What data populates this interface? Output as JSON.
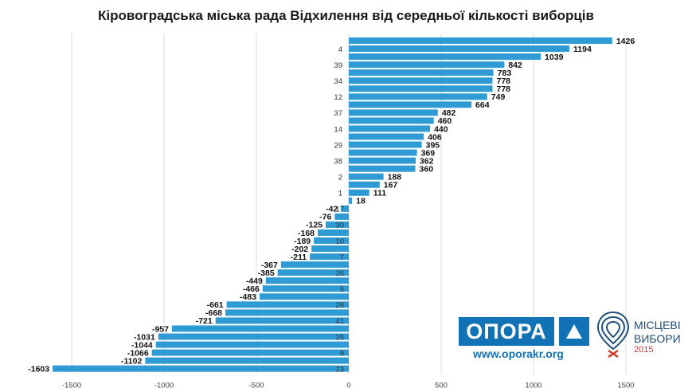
{
  "chart_data": {
    "type": "bar",
    "orientation": "horizontal",
    "title": "Кіровоградська  міська рада Відхилення від середньої кількості виборців",
    "xlim": [
      -1700,
      1500
    ],
    "x_ticks": [
      -1500,
      -1000,
      -500,
      0,
      500,
      1000,
      1500
    ],
    "grid": true,
    "color": "#2e9bd5",
    "bars": [
      {
        "category": "",
        "value": 1426
      },
      {
        "category": "4",
        "value": 1194
      },
      {
        "category": "",
        "value": 1039
      },
      {
        "category": "39",
        "value": 842
      },
      {
        "category": "",
        "value": 783
      },
      {
        "category": "34",
        "value": 778
      },
      {
        "category": "",
        "value": 778
      },
      {
        "category": "12",
        "value": 749
      },
      {
        "category": "",
        "value": 664
      },
      {
        "category": "37",
        "value": 482
      },
      {
        "category": "",
        "value": 460
      },
      {
        "category": "14",
        "value": 440
      },
      {
        "category": "",
        "value": 406
      },
      {
        "category": "29",
        "value": 395
      },
      {
        "category": "",
        "value": 369
      },
      {
        "category": "38",
        "value": 362
      },
      {
        "category": "",
        "value": 360
      },
      {
        "category": "2",
        "value": 188
      },
      {
        "category": "",
        "value": 167
      },
      {
        "category": "1",
        "value": 111
      },
      {
        "category": "",
        "value": 18
      },
      {
        "category": "17",
        "value": -42
      },
      {
        "category": "",
        "value": -76
      },
      {
        "category": "30",
        "value": -125
      },
      {
        "category": "",
        "value": -168
      },
      {
        "category": "10",
        "value": -189
      },
      {
        "category": "",
        "value": -202
      },
      {
        "category": "7",
        "value": -211
      },
      {
        "category": "",
        "value": -367
      },
      {
        "category": "35",
        "value": -385
      },
      {
        "category": "",
        "value": -449
      },
      {
        "category": "5",
        "value": -466
      },
      {
        "category": "",
        "value": -483
      },
      {
        "category": "28",
        "value": -661
      },
      {
        "category": "",
        "value": -668
      },
      {
        "category": "41",
        "value": -721
      },
      {
        "category": "",
        "value": -957
      },
      {
        "category": "25",
        "value": -1031
      },
      {
        "category": "",
        "value": -1044
      },
      {
        "category": "9",
        "value": -1066
      },
      {
        "category": "",
        "value": -1102
      },
      {
        "category": "23",
        "value": -1603
      }
    ]
  },
  "logos": {
    "opora_text": "ОПОРА",
    "opora_url": "www.oporakr.org",
    "mv_line1": "МІСЦЕВІ",
    "mv_line2": "ВИБОРИ",
    "mv_year": "2015",
    "opora_color": "#1173b6",
    "mv_color": "#1f4e79",
    "mv_accent": "#d23a2a"
  }
}
